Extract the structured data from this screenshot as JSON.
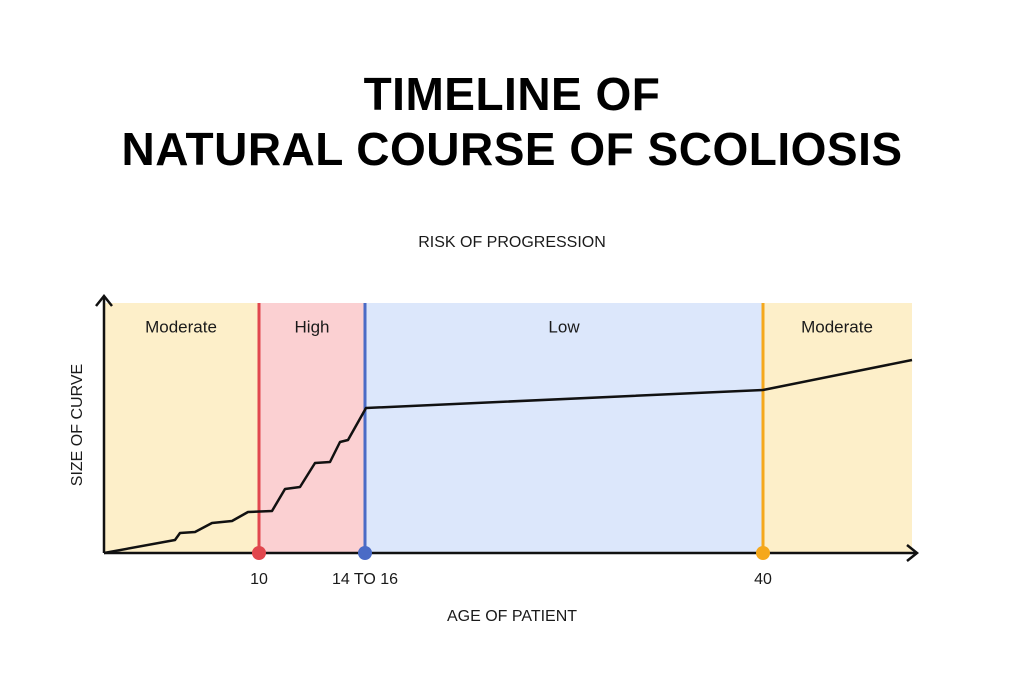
{
  "title": {
    "line1": "TIMELINE OF",
    "line2": "NATURAL COURSE OF SCOLIOSIS"
  },
  "subtitle": "RISK OF PROGRESSION",
  "zones": [
    "Moderate",
    "High",
    "Low",
    "Moderate"
  ],
  "markers": [
    "10",
    "14 TO 16",
    "40"
  ],
  "y_axis_label": "SIZE OF CURVE",
  "x_axis_label": "AGE OF PATIENT"
}
